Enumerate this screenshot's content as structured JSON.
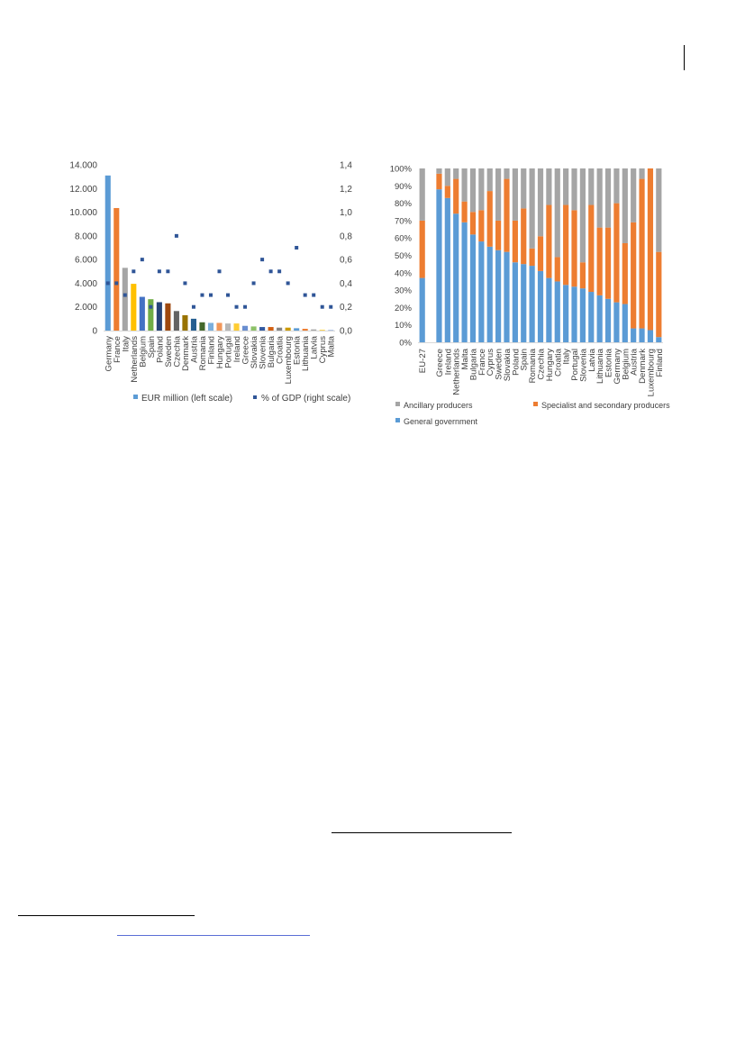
{
  "chart_data": [
    {
      "type": "bar",
      "categories": [
        "Germany",
        "France",
        "Italy",
        "Netherlands",
        "Belgium",
        "Spain",
        "Poland",
        "Sweden",
        "Czechia",
        "Denmark",
        "Austria",
        "Romania",
        "Finland",
        "Hungary",
        "Portugal",
        "Ireland",
        "Greece",
        "Slovakia",
        "Slovenia",
        "Bulgaria",
        "Croatia",
        "Luxembourg",
        "Estonia",
        "Lithuania",
        "Latvia",
        "Cyprus",
        "Malta"
      ],
      "series": [
        {
          "name": "EUR million (left scale)",
          "axis": "left",
          "values": [
            13100,
            10350,
            5300,
            3950,
            2850,
            2650,
            2400,
            2300,
            1650,
            1300,
            1000,
            700,
            650,
            650,
            600,
            600,
            400,
            350,
            300,
            300,
            250,
            250,
            200,
            150,
            100,
            50,
            30
          ]
        },
        {
          "name": "% of GDP (right scale)",
          "axis": "right",
          "type": "scatter",
          "values": [
            0.4,
            0.4,
            0.3,
            0.5,
            0.6,
            0.2,
            0.5,
            0.5,
            0.8,
            0.4,
            0.2,
            0.3,
            0.3,
            0.5,
            0.3,
            0.2,
            0.2,
            0.4,
            0.6,
            0.5,
            0.5,
            0.4,
            0.7,
            0.3,
            0.3,
            0.2,
            0.2
          ]
        }
      ],
      "bar_colors": [
        "#5b9bd5",
        "#ed7d31",
        "#a5a5a5",
        "#ffc000",
        "#4472c4",
        "#70ad47",
        "#264478",
        "#9e480e",
        "#636363",
        "#997300",
        "#255e91",
        "#43682b",
        "#7cafdd",
        "#f1975a",
        "#b7b7b7",
        "#ffcd33",
        "#698ed0",
        "#8cc168",
        "#335aa1",
        "#d26012",
        "#848484",
        "#cc9a00",
        "#5b9bd5",
        "#ed7d31",
        "#a5a5a5",
        "#ffc000",
        "#4472c4"
      ],
      "marker_color": "#2f5597",
      "left_ticks": [
        "0",
        "2.000",
        "4.000",
        "6.000",
        "8.000",
        "10.000",
        "12.000",
        "14.000"
      ],
      "right_ticks": [
        "0,0",
        "0,2",
        "0,4",
        "0,6",
        "0,8",
        "1,0",
        "1,2",
        "1,4"
      ],
      "ylim_left": [
        0,
        14000
      ],
      "ylim_right": [
        0,
        1.4
      ],
      "grid": false,
      "legend_position": "bottom"
    },
    {
      "type": "bar",
      "stacked": true,
      "percent": true,
      "categories": [
        "EU-27",
        "",
        "Greece",
        "Ireland",
        "Netherlands",
        "Malta",
        "Bulgaria",
        "France",
        "Cyprus",
        "Sweden",
        "Slovakia",
        "Poland",
        "Spain",
        "Romania",
        "Czechia",
        "Hungary",
        "Croatia",
        "Italy",
        "Portugal",
        "Slovenia",
        "Latvia",
        "Lithuania",
        "Estonia",
        "Germany",
        "Belgium",
        "Austria",
        "Denmark",
        "Luxembourg",
        "Finland"
      ],
      "series": [
        {
          "name": "General government",
          "color": "#5b9bd5",
          "values": [
            37,
            0,
            88,
            83,
            74,
            69,
            62,
            58,
            55,
            53,
            52,
            46,
            45,
            44,
            41,
            37,
            35,
            33,
            32,
            31,
            29,
            27,
            25,
            23,
            22,
            8,
            8,
            7,
            3
          ]
        },
        {
          "name": "Specialist and secondary producers",
          "color": "#ed7d31",
          "values": [
            33,
            0,
            9,
            7,
            20,
            12,
            13,
            18,
            32,
            17,
            42,
            24,
            32,
            10,
            20,
            42,
            14,
            46,
            44,
            15,
            50,
            39,
            41,
            57,
            35,
            61,
            86,
            93,
            49
          ]
        },
        {
          "name": "Ancillary producers",
          "color": "#a5a5a5",
          "values": [
            30,
            0,
            3,
            10,
            6,
            19,
            25,
            24,
            13,
            30,
            6,
            30,
            23,
            46,
            39,
            21,
            51,
            21,
            24,
            54,
            21,
            34,
            34,
            20,
            43,
            31,
            6,
            0,
            48
          ]
        }
      ],
      "y_ticks": [
        "0%",
        "10%",
        "20%",
        "30%",
        "40%",
        "50%",
        "60%",
        "70%",
        "80%",
        "90%",
        "100%"
      ],
      "ylim": [
        0,
        100
      ],
      "grid": false,
      "legend_position": "bottom"
    }
  ]
}
